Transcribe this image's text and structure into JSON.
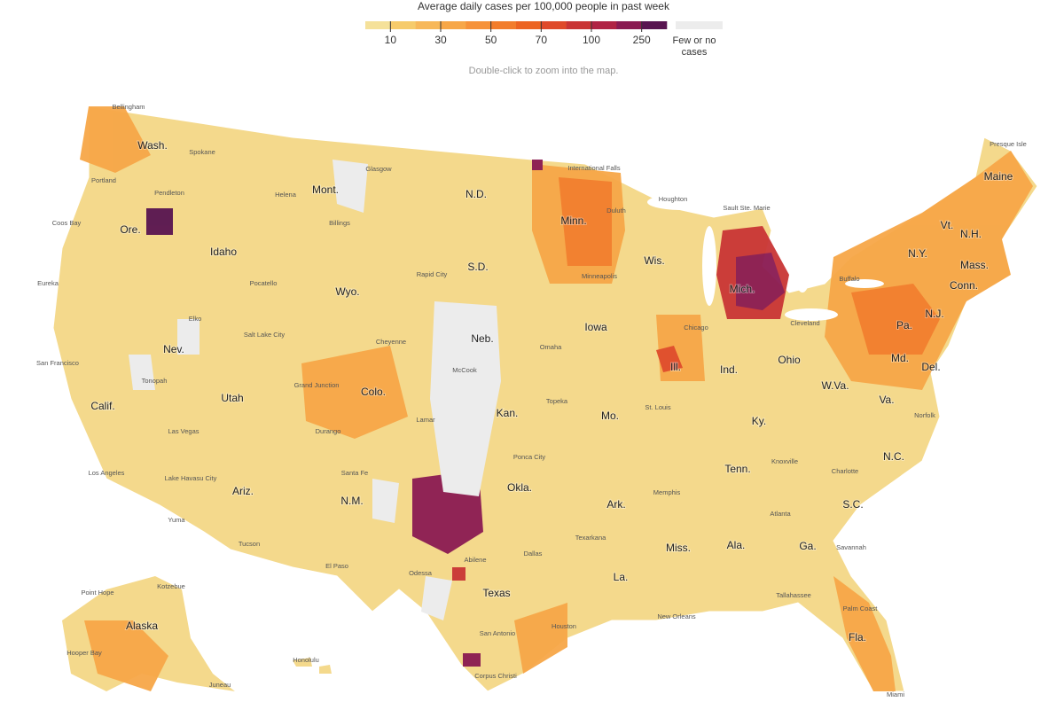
{
  "legend": {
    "title": "Average daily cases per 100,000 people in past week",
    "ticks": [
      10,
      30,
      50,
      70,
      100,
      250
    ],
    "colors": [
      "#f5e19a",
      "#f6cb6b",
      "#f7b85a",
      "#f7a748",
      "#f6923a",
      "#f27d2c",
      "#ec6422",
      "#df4a2a",
      "#c93535",
      "#b02344",
      "#8a1a52",
      "#581450"
    ],
    "no_data_label": "Few or no cases",
    "no_data_color": "#ececec"
  },
  "hint": "Double-click to zoom into the map.",
  "states": [
    "Wash.",
    "Ore.",
    "Idaho",
    "Mont.",
    "Wyo.",
    "N.D.",
    "S.D.",
    "Minn.",
    "Wis.",
    "Mich.",
    "Iowa",
    "Neb.",
    "Nev.",
    "Utah",
    "Colo.",
    "Kan.",
    "Mo.",
    "Ill.",
    "Ind.",
    "Ohio",
    "Calif.",
    "Ariz.",
    "N.M.",
    "Okla.",
    "Ark.",
    "Tenn.",
    "Ky.",
    "W.Va.",
    "Va.",
    "N.C.",
    "S.C.",
    "Ga.",
    "Ala.",
    "Miss.",
    "La.",
    "Texas",
    "Fla.",
    "Pa.",
    "N.Y.",
    "Vt.",
    "N.H.",
    "Maine",
    "Mass.",
    "Conn.",
    "N.J.",
    "Del.",
    "Md.",
    "Alaska"
  ],
  "cities": [
    "Bellingham",
    "Spokane",
    "Portland",
    "Pendleton",
    "Coos Bay",
    "Helena",
    "Glasgow",
    "Billings",
    "International Falls",
    "Duluth",
    "Houghton",
    "Sault Ste. Marie",
    "Presque Isle",
    "Eureka",
    "Pocatello",
    "Rapid City",
    "Minneapolis",
    "Elko",
    "Salt Lake City",
    "Cheyenne",
    "Omaha",
    "Chicago",
    "Cleveland",
    "Buffalo",
    "San Francisco",
    "Tonopah",
    "Grand Junction",
    "McCook",
    "Topeka",
    "St. Louis",
    "Norfolk",
    "Lamar",
    "Durango",
    "Las Vegas",
    "Los Angeles",
    "Lake Havasu City",
    "Santa Fe",
    "Ponca City",
    "Knoxville",
    "Charlotte",
    "Memphis",
    "Atlanta",
    "Yuma",
    "Tucson",
    "El Paso",
    "Texarkana",
    "Dallas",
    "Abilene",
    "Odessa",
    "Savannah",
    "Tallahassee",
    "Palm Coast",
    "New Orleans",
    "Houston",
    "San Antonio",
    "Corpus Christi",
    "Miami",
    "Point Hope",
    "Kotzebue",
    "Hooper Bay",
    "Juneau",
    "Honolulu"
  ]
}
